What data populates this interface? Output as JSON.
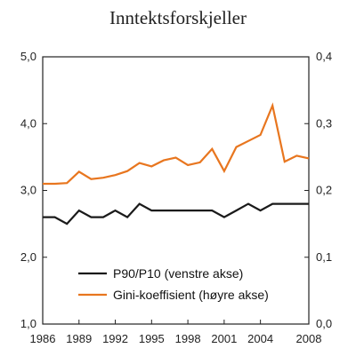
{
  "chart_data": {
    "type": "line",
    "title": "Inntektsforskjeller",
    "x": [
      1986,
      1987,
      1988,
      1989,
      1990,
      1991,
      1992,
      1993,
      1994,
      1995,
      1996,
      1997,
      1998,
      1999,
      2000,
      2001,
      2002,
      2003,
      2004,
      2005,
      2006,
      2007,
      2008
    ],
    "x_ticks": [
      1986,
      1989,
      1992,
      1995,
      1998,
      2001,
      2004,
      2008
    ],
    "xlim": [
      1986,
      2008
    ],
    "y_left": {
      "lim": [
        1.0,
        5.0
      ],
      "ticks": [
        "1,0",
        "2,0",
        "3,0",
        "4,0",
        "5,0"
      ],
      "tick_values": [
        1.0,
        2.0,
        3.0,
        4.0,
        5.0
      ]
    },
    "y_right": {
      "lim": [
        0.0,
        0.4
      ],
      "ticks": [
        "0,0",
        "0,1",
        "0,2",
        "0,3",
        "0,4"
      ],
      "tick_values": [
        0.0,
        0.1,
        0.2,
        0.3,
        0.4
      ]
    },
    "grid": false,
    "legend_position": "bottom-center",
    "series": [
      {
        "name": "P90/P10 (venstre akse)",
        "axis": "left",
        "color": "#1a1a1a",
        "values": [
          2.6,
          2.6,
          2.5,
          2.7,
          2.6,
          2.6,
          2.7,
          2.6,
          2.8,
          2.7,
          2.7,
          2.7,
          2.7,
          2.7,
          2.7,
          2.6,
          2.7,
          2.8,
          2.7,
          2.8,
          2.8,
          2.8,
          2.8
        ]
      },
      {
        "name": "Gini-koeffisient (høyre akse)",
        "axis": "right",
        "color": "#e8761f",
        "values": [
          0.21,
          0.21,
          0.211,
          0.228,
          0.217,
          0.219,
          0.223,
          0.229,
          0.241,
          0.236,
          0.245,
          0.249,
          0.238,
          0.242,
          0.262,
          0.229,
          0.265,
          0.274,
          0.283,
          0.327,
          0.243,
          0.252,
          0.248
        ]
      }
    ]
  }
}
